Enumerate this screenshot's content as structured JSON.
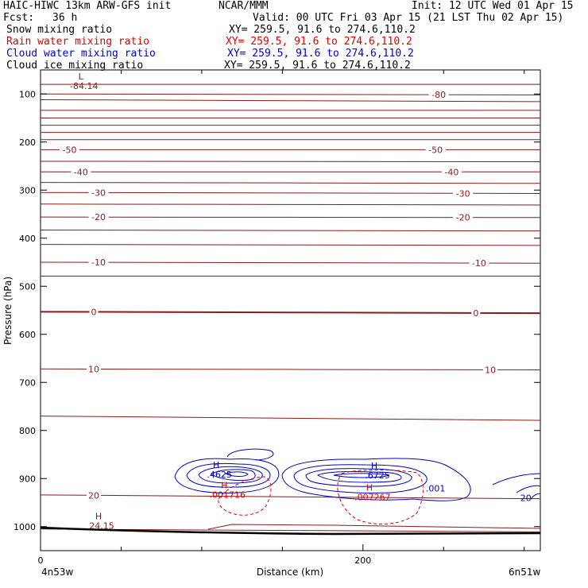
{
  "header": {
    "model": "HAIC-HIWC 13km ARW-GFS init",
    "org": "NCAR/MMM",
    "init": "Init: 12 UTC Wed 01 Apr 15",
    "fcst_label": "Fcst:",
    "fcst_value": "36 h",
    "valid": "Valid: 00 UTC Fri 03 Apr 15 (21 LST Thu 02 Apr 15)"
  },
  "fields": [
    {
      "name": "Snow mixing ratio",
      "xy": "XY= 259.5, 91.6 to 274.6,110.2",
      "color": "#000000"
    },
    {
      "name": "Rain water mixing ratio",
      "xy": "XY= 259.5, 91.6 to 274.6,110.2",
      "color": "#e00000"
    },
    {
      "name": "Cloud water mixing ratio",
      "xy": "XY= 259.5, 91.6 to 274.6,110.2",
      "color": "#0000d0"
    },
    {
      "name": "Cloud ice mixing ratio",
      "xy": "XY= 259.5, 91.6 to 274.6,110.2",
      "color": "#000000"
    }
  ],
  "chart_data": {
    "type": "contour-cross-section",
    "xlabel": "Distance (km)",
    "ylabel": "Pressure (hPa)",
    "xlim": [
      0,
      310
    ],
    "ylim": [
      1050,
      50
    ],
    "x_ticks": [
      0,
      200
    ],
    "x_minor_ticks": [
      50,
      100,
      150,
      250,
      300
    ],
    "y_ticks": [
      100,
      200,
      300,
      400,
      500,
      600,
      700,
      800,
      900,
      1000
    ],
    "endpoint_labels": {
      "left": "4n53w",
      "right": "6n51w"
    },
    "colors": {
      "temperature": "#8b1a1a",
      "cloud_water": "#0000d0",
      "rain": "#e00000",
      "terrain": "#000000"
    },
    "temperature_lines": [
      {
        "pl": 1005,
        "pr": 1011,
        "label": "",
        "lx": null
      },
      {
        "pl": 934,
        "pr": 942,
        "label": "20",
        "lx": 33
      },
      {
        "pl": 770,
        "pr": 779,
        "label": "",
        "lx": null
      },
      {
        "pl": 672,
        "pr": 674,
        "label": "10",
        "lx": 33,
        "rlabel": "10",
        "rx": 279
      },
      {
        "pl": 553,
        "pr": 556,
        "label": "0",
        "lx": 33,
        "rlabel": "0",
        "rx": 270,
        "bold": true
      },
      {
        "pl": 479,
        "pr": 479,
        "label": "",
        "lx": null
      },
      {
        "pl": 450,
        "pr": 452,
        "label": "-10",
        "lx": 36,
        "rlabel": "-10",
        "rx": 272
      },
      {
        "pl": 413,
        "pr": 415,
        "label": "",
        "lx": null
      },
      {
        "pl": 383,
        "pr": 385,
        "label": "",
        "lx": null
      },
      {
        "pl": 356,
        "pr": 357,
        "label": "-20",
        "lx": 36,
        "rlabel": "-20",
        "rx": 262
      },
      {
        "pl": 329,
        "pr": 331,
        "label": "",
        "lx": null
      },
      {
        "pl": 305,
        "pr": 307,
        "label": "-30",
        "lx": 36,
        "rlabel": "-30",
        "rx": 262
      },
      {
        "pl": 284,
        "pr": 286,
        "label": "",
        "lx": null
      },
      {
        "pl": 262,
        "pr": 262,
        "label": "-40",
        "lx": 25,
        "rlabel": "-40",
        "rx": 255
      },
      {
        "pl": 240,
        "pr": 241,
        "label": "",
        "lx": null
      },
      {
        "pl": 216,
        "pr": 216,
        "label": "-50",
        "lx": 18,
        "rlabel": "-50",
        "rx": 245
      },
      {
        "pl": 195,
        "pr": 195,
        "label": "",
        "lx": null
      },
      {
        "pl": 180,
        "pr": 180,
        "label": "",
        "lx": null
      },
      {
        "pl": 165,
        "pr": 165,
        "label": "",
        "lx": null
      },
      {
        "pl": 150,
        "pr": 150,
        "label": "",
        "lx": null
      },
      {
        "pl": 134,
        "pr": 134,
        "label": "",
        "lx": null
      },
      {
        "pl": 112,
        "pr": 116,
        "label": "",
        "lx": null
      },
      {
        "pl": 100,
        "pr": 102,
        "label": "",
        "lx": null,
        "rlabel": "-80",
        "rx": 247
      },
      {
        "pl": 80,
        "pr": 80,
        "label": "",
        "lx": null
      }
    ],
    "extremes": [
      {
        "type": "L",
        "x": 25,
        "p": 70,
        "value": "-84.14",
        "color": "#8b1a1a"
      },
      {
        "type": "H",
        "x": 36,
        "p": 985,
        "value": "24.15",
        "color": "#8b1a1a"
      },
      {
        "type": "H",
        "x": 109,
        "p": 878,
        "value": ".4625",
        "color": "#0000d0"
      },
      {
        "type": "H",
        "x": 207,
        "p": 880,
        "value": ".6725",
        "color": "#0000d0"
      },
      {
        "type": "H",
        "x": 114,
        "p": 920,
        "value": ".001716",
        "color": "#e00000"
      },
      {
        "type": "H",
        "x": 204,
        "p": 925,
        "value": ".007267",
        "color": "#e00000"
      }
    ],
    "contour_labels": [
      {
        "text": ".001",
        "x": 245,
        "p": 927,
        "color": "#0000d0"
      },
      {
        "text": "20",
        "x": 301,
        "p": 947,
        "color": "#0000d0"
      }
    ]
  }
}
